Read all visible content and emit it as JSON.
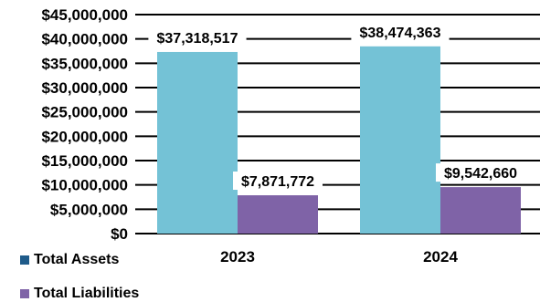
{
  "chart_data": {
    "type": "bar",
    "categories": [
      "2023",
      "2024"
    ],
    "series": [
      {
        "name": "Total Assets",
        "values": [
          37318517,
          38474363
        ],
        "labels": [
          "$37,318,517",
          "$38,474,363"
        ],
        "color": "#74C2D6"
      },
      {
        "name": "Total Liabilities",
        "values": [
          7871772,
          9542660
        ],
        "labels": [
          "$7,871,772",
          "$9,542,660"
        ],
        "color": "#7F63A7"
      }
    ],
    "ylim": [
      0,
      45000000
    ],
    "yticks": [
      "$0",
      "$5,000,000",
      "$10,000,000",
      "$15,000,000",
      "$20,000,000",
      "$25,000,000",
      "$30,000,000",
      "$35,000,000",
      "$40,000,000",
      "$45,000,000"
    ],
    "grid": true,
    "legend_position": "bottom-left",
    "legend_swatch_colors": [
      "#1F5B8A",
      "#7F63A7"
    ],
    "title": "",
    "xlabel": "",
    "ylabel": ""
  }
}
